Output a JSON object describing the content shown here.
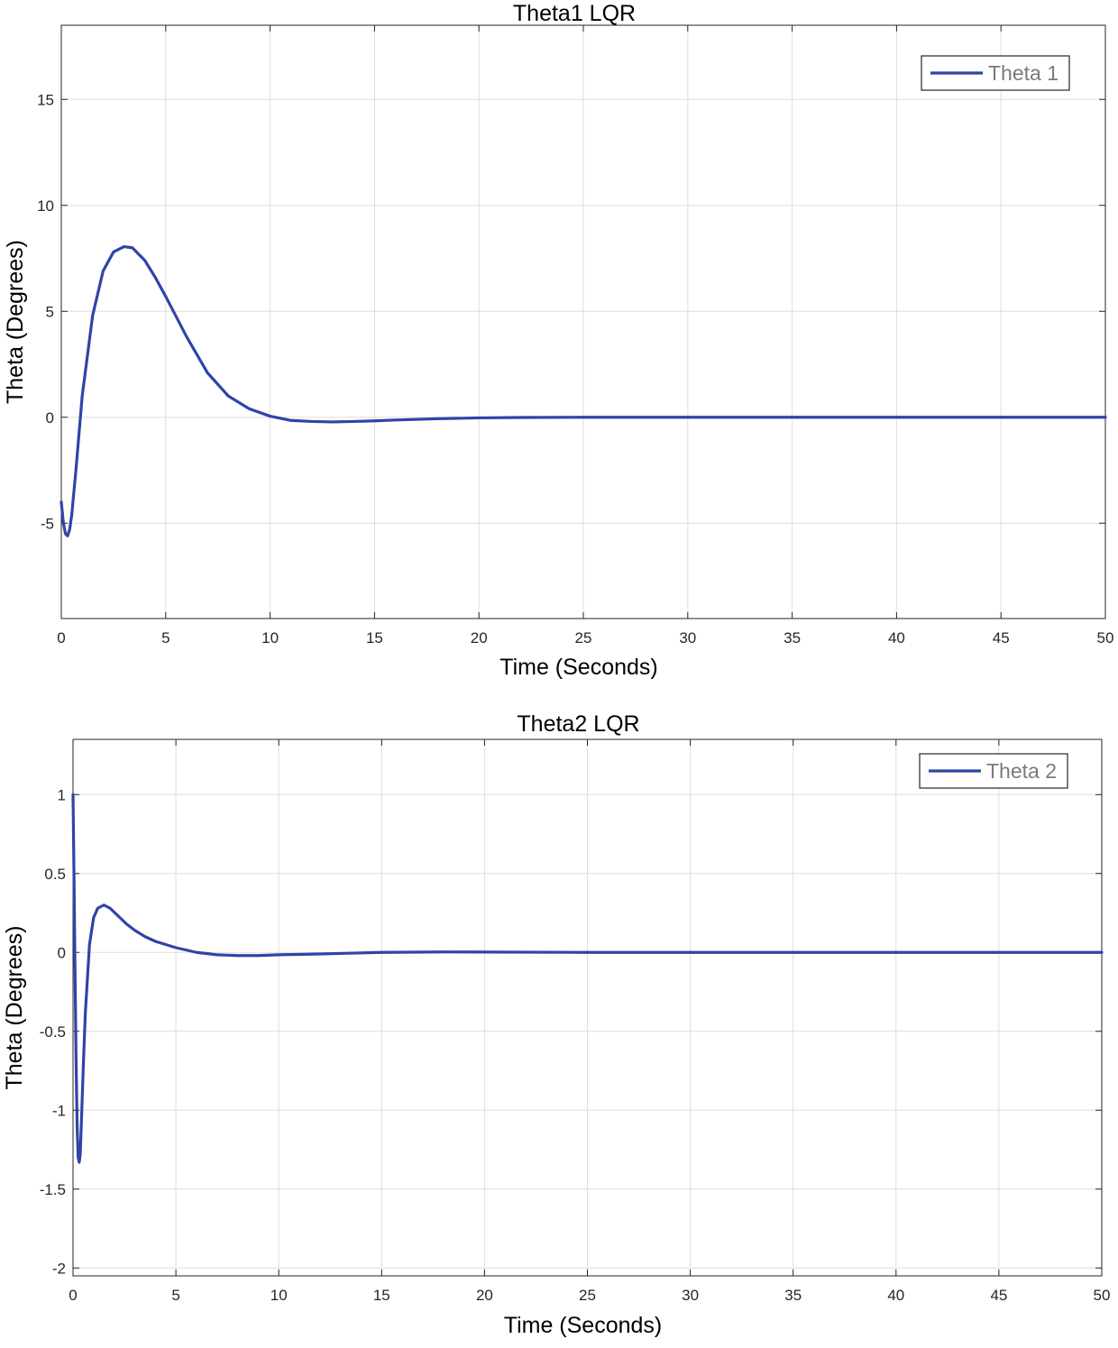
{
  "colors": {
    "series": "#2f44a6",
    "grid": "#dedede",
    "axis": "#262626"
  },
  "chart_data": [
    {
      "type": "line",
      "title": "Theta1 LQR",
      "xlabel": "Time (Seconds)",
      "ylabel": "Theta (Degrees)",
      "xlim": [
        0,
        50
      ],
      "ylim": [
        -9.5,
        18.5
      ],
      "xticks": [
        0,
        5,
        10,
        15,
        20,
        25,
        30,
        35,
        40,
        45,
        50
      ],
      "yticks": [
        -5,
        0,
        5,
        10,
        15
      ],
      "grid": true,
      "legend": {
        "position": "top-right",
        "entries": [
          "Theta 1"
        ]
      },
      "series": [
        {
          "name": "Theta 1",
          "x": [
            0,
            0.1,
            0.2,
            0.3,
            0.4,
            0.5,
            0.7,
            1,
            1.5,
            2,
            2.5,
            3,
            3.4,
            4,
            4.5,
            5,
            6,
            7,
            8,
            9,
            10,
            11,
            12,
            13,
            14,
            15,
            16,
            18,
            20,
            22,
            25,
            30,
            35,
            40,
            45,
            50
          ],
          "y": [
            -4,
            -5,
            -5.5,
            -5.6,
            -5.3,
            -4.6,
            -2.5,
            1,
            4.8,
            6.9,
            7.8,
            8.05,
            8.0,
            7.4,
            6.6,
            5.7,
            3.8,
            2.1,
            1.0,
            0.4,
            0.05,
            -0.15,
            -0.2,
            -0.22,
            -0.2,
            -0.17,
            -0.13,
            -0.07,
            -0.03,
            -0.01,
            0,
            0,
            0,
            0,
            0,
            0
          ]
        }
      ]
    },
    {
      "type": "line",
      "title": "Theta2 LQR",
      "xlabel": "Time (Seconds)",
      "ylabel": "Theta (Degrees)",
      "xlim": [
        0,
        50
      ],
      "ylim": [
        -2.05,
        1.35
      ],
      "xticks": [
        0,
        5,
        10,
        15,
        20,
        25,
        30,
        35,
        40,
        45,
        50
      ],
      "yticks": [
        -2,
        -1.5,
        -1,
        -0.5,
        0,
        0.5,
        1
      ],
      "grid": true,
      "legend": {
        "position": "top-right",
        "entries": [
          "Theta 2"
        ]
      },
      "series": [
        {
          "name": "Theta 2",
          "x": [
            0,
            0.05,
            0.1,
            0.15,
            0.2,
            0.25,
            0.3,
            0.35,
            0.4,
            0.5,
            0.6,
            0.8,
            1,
            1.2,
            1.5,
            1.8,
            2.2,
            2.6,
            3,
            3.5,
            4,
            5,
            6,
            7,
            8,
            9,
            10,
            12,
            15,
            18,
            20,
            25,
            30,
            35,
            40,
            45,
            50
          ],
          "y": [
            1.0,
            0.45,
            -0.15,
            -0.7,
            -1.1,
            -1.3,
            -1.33,
            -1.28,
            -1.1,
            -0.72,
            -0.38,
            0.05,
            0.22,
            0.28,
            0.3,
            0.28,
            0.23,
            0.18,
            0.14,
            0.1,
            0.07,
            0.03,
            0.0,
            -0.015,
            -0.02,
            -0.02,
            -0.015,
            -0.01,
            0,
            0.003,
            0.002,
            0,
            0,
            0,
            0,
            0,
            0
          ]
        }
      ]
    }
  ]
}
